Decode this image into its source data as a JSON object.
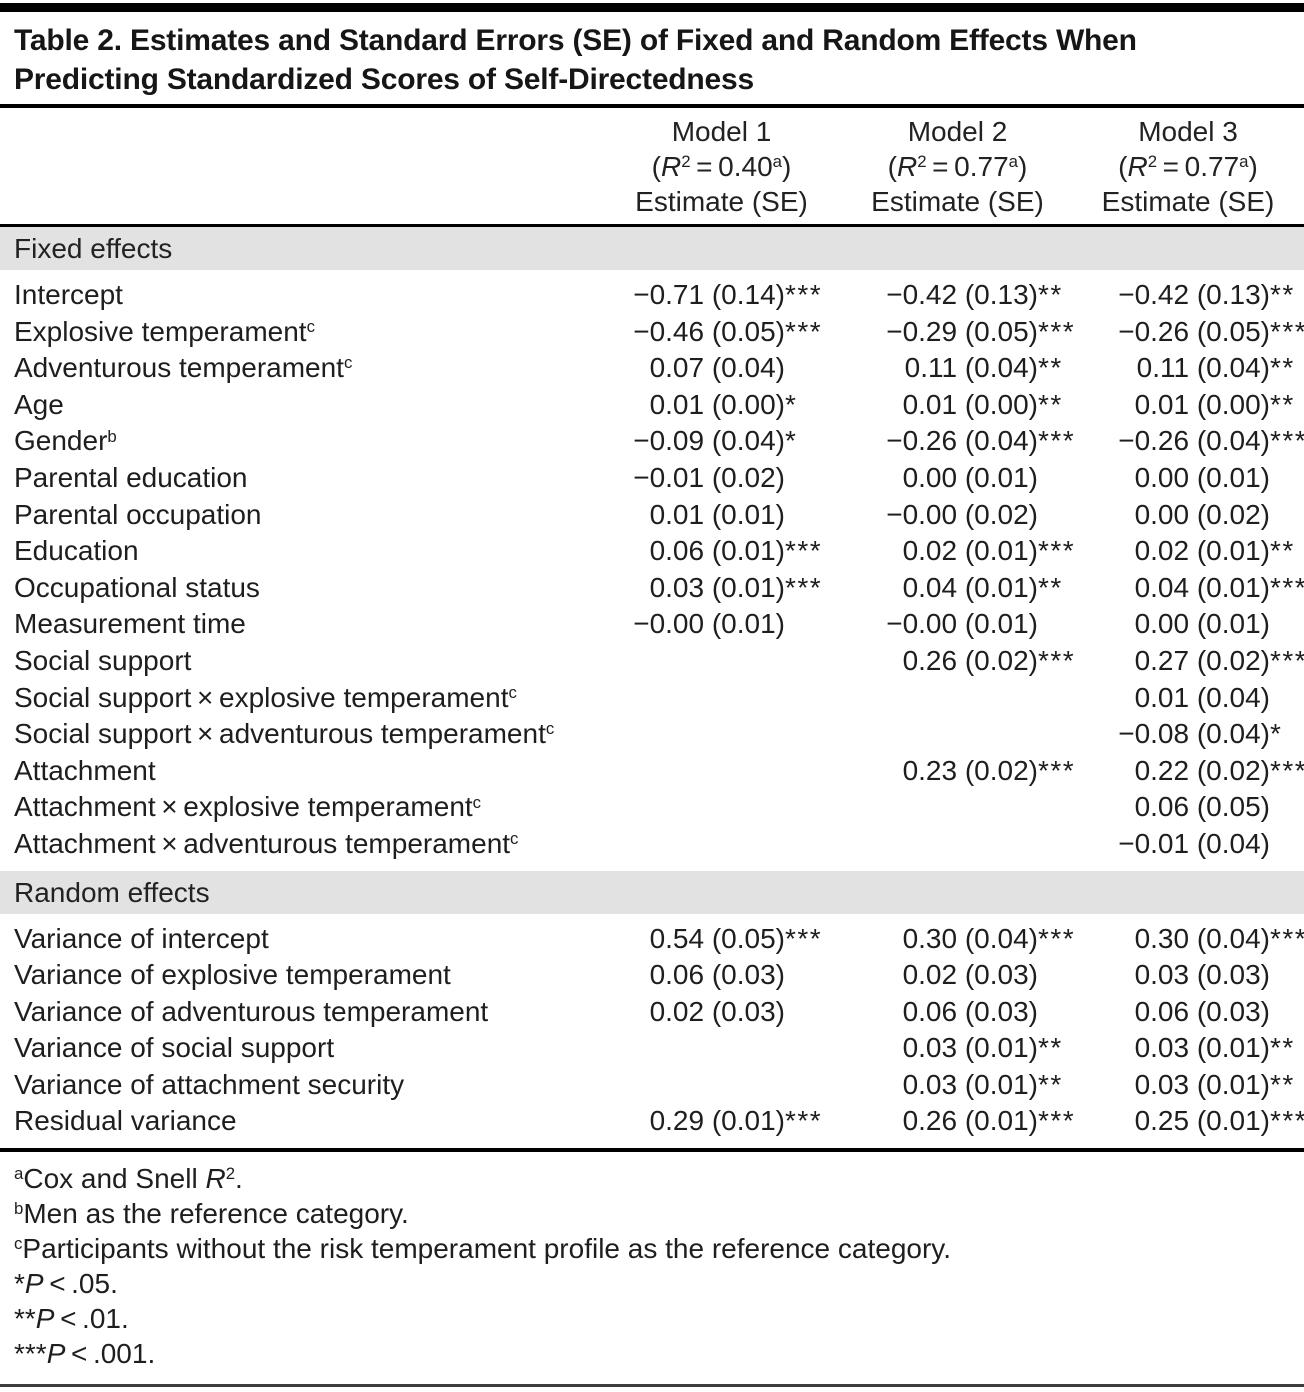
{
  "title_lines": [
    "Table 2. Estimates and Standard Errors (SE) of Fixed and Random Effects When",
    "Predicting Standardized Scores of Self-Directedness"
  ],
  "header": {
    "models": [
      {
        "name": "Model 1",
        "r2": [
          {
            "v": "("
          },
          {
            "v": "R",
            "italic": true
          },
          {
            "v": "2",
            "sup": true
          },
          {
            "v": " = 0.40"
          },
          {
            "v": "a",
            "sup": true
          },
          {
            "v": ")"
          }
        ],
        "estimate": "Estimate (SE)"
      },
      {
        "name": "Model 2",
        "r2": [
          {
            "v": "("
          },
          {
            "v": "R",
            "italic": true
          },
          {
            "v": "2",
            "sup": true
          },
          {
            "v": " = 0.77"
          },
          {
            "v": "a",
            "sup": true
          },
          {
            "v": ")"
          }
        ],
        "estimate": "Estimate (SE)"
      },
      {
        "name": "Model 3",
        "r2": [
          {
            "v": "("
          },
          {
            "v": "R",
            "italic": true
          },
          {
            "v": "2",
            "sup": true
          },
          {
            "v": " = 0.77"
          },
          {
            "v": "a",
            "sup": true
          },
          {
            "v": ")"
          }
        ],
        "estimate": "Estimate (SE)"
      }
    ]
  },
  "sections": [
    {
      "header": "Fixed effects",
      "rows": [
        {
          "label": [
            {
              "v": "Intercept"
            }
          ],
          "values": [
            {
              "v": "−0.71 (0.14)",
              "s": "***"
            },
            {
              "v": "−0.42 (0.13)",
              "s": "**"
            },
            {
              "v": "−0.42 (0.13)",
              "s": "**"
            }
          ]
        },
        {
          "label": [
            {
              "v": "Explosive temperament"
            },
            {
              "v": "c",
              "sup": true
            }
          ],
          "values": [
            {
              "v": "−0.46 (0.05)",
              "s": "***"
            },
            {
              "v": "−0.29 (0.05)",
              "s": "***"
            },
            {
              "v": "−0.26 (0.05)",
              "s": "***"
            }
          ]
        },
        {
          "label": [
            {
              "v": "Adventurous temperament"
            },
            {
              "v": "c",
              "sup": true
            }
          ],
          "values": [
            {
              "v": "0.07 (0.04)",
              "s": ""
            },
            {
              "v": "0.11 (0.04)",
              "s": "**"
            },
            {
              "v": "0.11 (0.04)",
              "s": "**"
            }
          ]
        },
        {
          "label": [
            {
              "v": "Age"
            }
          ],
          "values": [
            {
              "v": "0.01 (0.00)",
              "s": "*"
            },
            {
              "v": "0.01 (0.00)",
              "s": "**"
            },
            {
              "v": "0.01 (0.00)",
              "s": "**"
            }
          ]
        },
        {
          "label": [
            {
              "v": "Gender"
            },
            {
              "v": "b",
              "sup": true
            }
          ],
          "values": [
            {
              "v": "−0.09 (0.04)",
              "s": "*"
            },
            {
              "v": "−0.26 (0.04)",
              "s": "***"
            },
            {
              "v": "−0.26 (0.04)",
              "s": "***"
            }
          ]
        },
        {
          "label": [
            {
              "v": "Parental education"
            }
          ],
          "values": [
            {
              "v": "−0.01 (0.02)",
              "s": ""
            },
            {
              "v": "0.00 (0.01)",
              "s": ""
            },
            {
              "v": "0.00 (0.01)",
              "s": ""
            }
          ]
        },
        {
          "label": [
            {
              "v": "Parental occupation"
            }
          ],
          "values": [
            {
              "v": "0.01 (0.01)",
              "s": ""
            },
            {
              "v": "−0.00 (0.02)",
              "s": ""
            },
            {
              "v": "0.00 (0.02)",
              "s": ""
            }
          ]
        },
        {
          "label": [
            {
              "v": "Education"
            }
          ],
          "values": [
            {
              "v": "0.06 (0.01)",
              "s": "***"
            },
            {
              "v": "0.02 (0.01)",
              "s": "***"
            },
            {
              "v": "0.02 (0.01)",
              "s": "**"
            }
          ]
        },
        {
          "label": [
            {
              "v": "Occupational status"
            }
          ],
          "values": [
            {
              "v": "0.03 (0.01)",
              "s": "***"
            },
            {
              "v": "0.04 (0.01)",
              "s": "**"
            },
            {
              "v": "0.04 (0.01)",
              "s": "***"
            }
          ]
        },
        {
          "label": [
            {
              "v": "Measurement time"
            }
          ],
          "values": [
            {
              "v": "−0.00 (0.01)",
              "s": ""
            },
            {
              "v": "−0.00 (0.01)",
              "s": ""
            },
            {
              "v": "0.00 (0.01)",
              "s": ""
            }
          ]
        },
        {
          "label": [
            {
              "v": "Social support"
            }
          ],
          "values": [
            {
              "v": "",
              "s": ""
            },
            {
              "v": "0.26 (0.02)",
              "s": "***"
            },
            {
              "v": "0.27 (0.02)",
              "s": "***"
            }
          ]
        },
        {
          "label": [
            {
              "v": "Social support × explosive temperament"
            },
            {
              "v": "c",
              "sup": true
            }
          ],
          "values": [
            {
              "v": "",
              "s": ""
            },
            {
              "v": "",
              "s": ""
            },
            {
              "v": "0.01 (0.04)",
              "s": ""
            }
          ]
        },
        {
          "label": [
            {
              "v": "Social support × adventurous temperament"
            },
            {
              "v": "c",
              "sup": true
            }
          ],
          "values": [
            {
              "v": "",
              "s": ""
            },
            {
              "v": "",
              "s": ""
            },
            {
              "v": "−0.08 (0.04)",
              "s": "*"
            }
          ]
        },
        {
          "label": [
            {
              "v": "Attachment"
            }
          ],
          "values": [
            {
              "v": "",
              "s": ""
            },
            {
              "v": "0.23 (0.02)",
              "s": "***"
            },
            {
              "v": "0.22 (0.02)",
              "s": "***"
            }
          ]
        },
        {
          "label": [
            {
              "v": "Attachment × explosive temperament"
            },
            {
              "v": "c",
              "sup": true
            }
          ],
          "values": [
            {
              "v": "",
              "s": ""
            },
            {
              "v": "",
              "s": ""
            },
            {
              "v": "0.06 (0.05)",
              "s": ""
            }
          ]
        },
        {
          "label": [
            {
              "v": "Attachment × adventurous temperament"
            },
            {
              "v": "c",
              "sup": true
            }
          ],
          "values": [
            {
              "v": "",
              "s": ""
            },
            {
              "v": "",
              "s": ""
            },
            {
              "v": "−0.01 (0.04)",
              "s": ""
            }
          ]
        }
      ]
    },
    {
      "header": "Random effects",
      "rows": [
        {
          "label": [
            {
              "v": "Variance of intercept"
            }
          ],
          "values": [
            {
              "v": "0.54 (0.05)",
              "s": "***"
            },
            {
              "v": "0.30 (0.04)",
              "s": "***"
            },
            {
              "v": "0.30 (0.04)",
              "s": "***"
            }
          ]
        },
        {
          "label": [
            {
              "v": "Variance of explosive temperament"
            }
          ],
          "values": [
            {
              "v": "0.06 (0.03)",
              "s": ""
            },
            {
              "v": "0.02 (0.03)",
              "s": ""
            },
            {
              "v": "0.03 (0.03)",
              "s": ""
            }
          ]
        },
        {
          "label": [
            {
              "v": "Variance of adventurous temperament"
            }
          ],
          "values": [
            {
              "v": "0.02 (0.03)",
              "s": ""
            },
            {
              "v": "0.06 (0.03)",
              "s": ""
            },
            {
              "v": "0.06 (0.03)",
              "s": ""
            }
          ]
        },
        {
          "label": [
            {
              "v": "Variance of social support"
            }
          ],
          "values": [
            {
              "v": "",
              "s": ""
            },
            {
              "v": "0.03 (0.01)",
              "s": "**"
            },
            {
              "v": "0.03 (0.01)",
              "s": "**"
            }
          ]
        },
        {
          "label": [
            {
              "v": "Variance of attachment security"
            }
          ],
          "values": [
            {
              "v": "",
              "s": ""
            },
            {
              "v": "0.03 (0.01)",
              "s": "**"
            },
            {
              "v": "0.03 (0.01)",
              "s": "**"
            }
          ]
        },
        {
          "label": [
            {
              "v": "Residual variance"
            }
          ],
          "values": [
            {
              "v": "0.29 (0.01)",
              "s": "***"
            },
            {
              "v": "0.26 (0.01)",
              "s": "***"
            },
            {
              "v": "0.25 (0.01)",
              "s": "***"
            }
          ]
        }
      ]
    }
  ],
  "footnotes": [
    [
      {
        "v": "a",
        "sup": true
      },
      {
        "v": "Cox and Snell "
      },
      {
        "v": "R",
        "italic": true
      },
      {
        "v": "2",
        "sup": true
      },
      {
        "v": "."
      }
    ],
    [
      {
        "v": "b",
        "sup": true
      },
      {
        "v": "Men as the reference category."
      }
    ],
    [
      {
        "v": "c",
        "sup": true
      },
      {
        "v": "Participants without the risk temperament profile as the reference category."
      }
    ],
    [
      {
        "v": "*"
      },
      {
        "v": "P",
        "italic": true
      },
      {
        "v": " < .05."
      }
    ],
    [
      {
        "v": "**"
      },
      {
        "v": "P",
        "italic": true
      },
      {
        "v": " < .01."
      }
    ],
    [
      {
        "v": "***"
      },
      {
        "v": "P",
        "italic": true
      },
      {
        "v": " < .001."
      }
    ]
  ],
  "colors": {
    "band_bg": "#e2e2e2",
    "text": "#1b1b1b",
    "rule": "#000000"
  }
}
